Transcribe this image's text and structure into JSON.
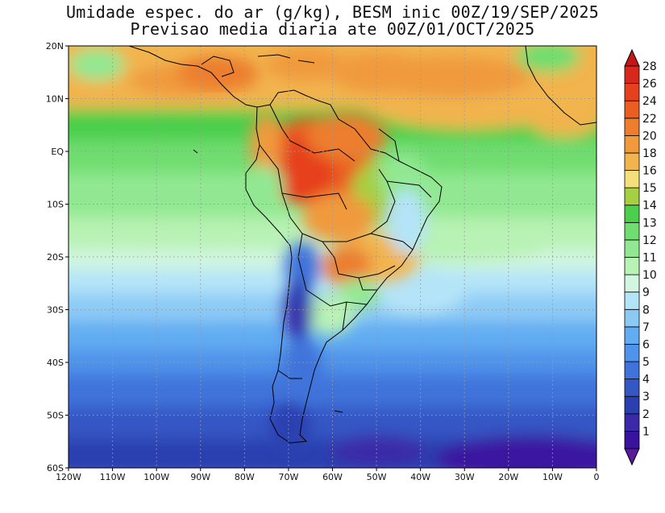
{
  "title": {
    "line1": "Umidade espec. do ar (g/kg), BESM inic 00Z/19/SEP/2025",
    "line2": "Previsao media diaria ate 00Z/01/OCT/2025"
  },
  "map": {
    "lon_range": [
      -120,
      0
    ],
    "lat_range": [
      -60,
      20
    ],
    "lat_ticks": [
      {
        "value": 20,
        "label": "20N"
      },
      {
        "value": 10,
        "label": "10N"
      },
      {
        "value": 0,
        "label": "EQ"
      },
      {
        "value": -10,
        "label": "10S"
      },
      {
        "value": -20,
        "label": "20S"
      },
      {
        "value": -30,
        "label": "30S"
      },
      {
        "value": -40,
        "label": "40S"
      },
      {
        "value": -50,
        "label": "50S"
      },
      {
        "value": -60,
        "label": "60S"
      }
    ],
    "lon_ticks": [
      {
        "value": -120,
        "label": "120W"
      },
      {
        "value": -110,
        "label": "110W"
      },
      {
        "value": -100,
        "label": "100W"
      },
      {
        "value": -90,
        "label": "90W"
      },
      {
        "value": -80,
        "label": "80W"
      },
      {
        "value": -70,
        "label": "70W"
      },
      {
        "value": -60,
        "label": "60W"
      },
      {
        "value": -50,
        "label": "50W"
      },
      {
        "value": -40,
        "label": "40W"
      },
      {
        "value": -30,
        "label": "30W"
      },
      {
        "value": -20,
        "label": "20W"
      },
      {
        "value": -10,
        "label": "10W"
      },
      {
        "value": 0,
        "label": "0"
      }
    ],
    "grid": true
  },
  "colorbar": {
    "levels": [
      {
        "label": "1",
        "color": "#3a12a0"
      },
      {
        "label": "2",
        "color": "#3b2aa8"
      },
      {
        "label": "3",
        "color": "#2a3fb0"
      },
      {
        "label": "4",
        "color": "#3457c4"
      },
      {
        "label": "5",
        "color": "#3f73da"
      },
      {
        "label": "6",
        "color": "#4f93ea"
      },
      {
        "label": "7",
        "color": "#62acf2"
      },
      {
        "label": "8",
        "color": "#8ccaf6"
      },
      {
        "label": "9",
        "color": "#b4e4f8"
      },
      {
        "label": "10",
        "color": "#d2f6e0"
      },
      {
        "label": "11",
        "color": "#b8f2b4"
      },
      {
        "label": "12",
        "color": "#92e892"
      },
      {
        "label": "13",
        "color": "#6fdd70"
      },
      {
        "label": "14",
        "color": "#4ccf4c"
      },
      {
        "label": "15",
        "color": "#a6cf43"
      },
      {
        "label": "16",
        "color": "#f4e07a"
      },
      {
        "label": "18",
        "color": "#f2b44e"
      },
      {
        "label": "20",
        "color": "#f09a3c"
      },
      {
        "label": "22",
        "color": "#ec7e2e"
      },
      {
        "label": "24",
        "color": "#ea5e22"
      },
      {
        "label": "26",
        "color": "#e6401e"
      },
      {
        "label": "28",
        "color": "#d8281c"
      }
    ],
    "over_color": "#c41616",
    "under_color": "#5a1a9a"
  }
}
